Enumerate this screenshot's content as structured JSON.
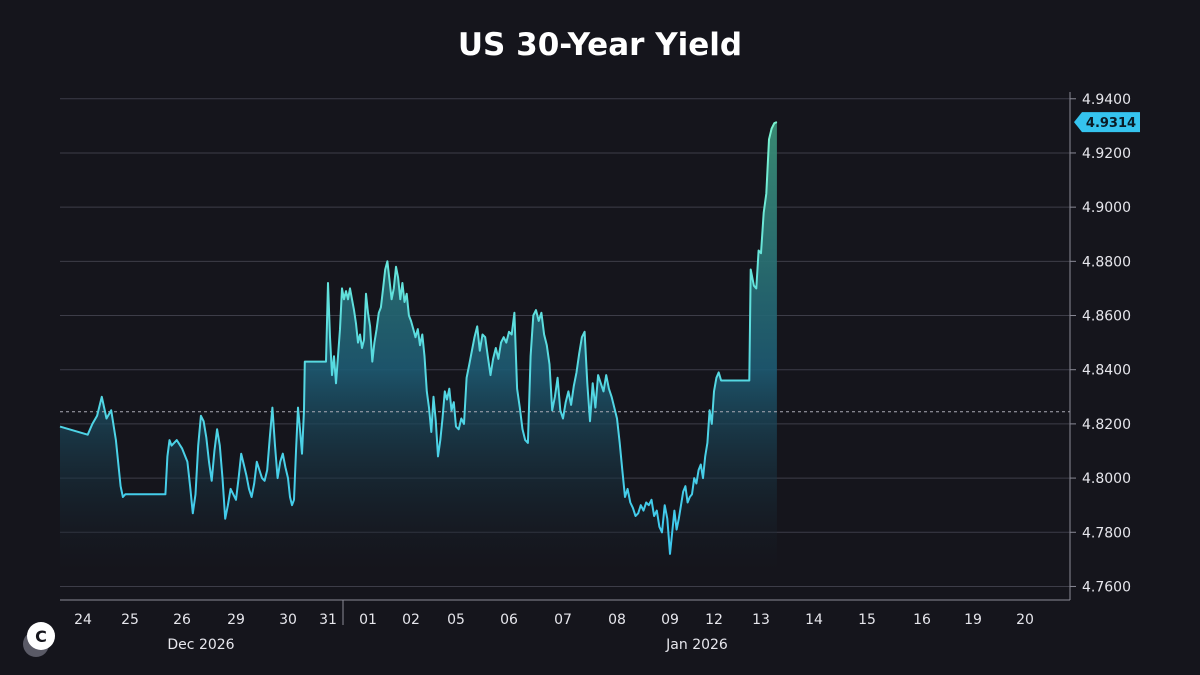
{
  "chart_data": {
    "type": "line",
    "title": "US 30-Year Yield",
    "ylim": [
      4.755,
      4.9425
    ],
    "y_ticks": [
      "4.9400",
      "4.9200",
      "4.9000",
      "4.8800",
      "4.8600",
      "4.8400",
      "4.8200",
      "4.8000",
      "4.7800",
      "4.7600"
    ],
    "x_ticks": [
      "24",
      "25",
      "26",
      "29",
      "30",
      "31",
      "01",
      "02",
      "05",
      "06",
      "07",
      "08",
      "09",
      "12",
      "13",
      "14",
      "15",
      "16",
      "19",
      "20"
    ],
    "month_labels": [
      "Dec 2026",
      "Jan 2026"
    ],
    "reference_level": 4.8245,
    "last_value": 4.9314,
    "last_value_label": "4.9314",
    "grid": true,
    "area_fill": true,
    "colors": {
      "background": "#15151c",
      "line_low": "#3cc7ee",
      "line_high": "#7af2d0",
      "badge": "#35c3ee",
      "grid": "#3d3d48"
    },
    "series": [
      {
        "points": [
          [
            0.0,
            4.819
          ],
          [
            0.1,
            4.816
          ],
          [
            0.2,
            4.82
          ],
          [
            0.3,
            4.823
          ],
          [
            0.4,
            4.83
          ],
          [
            0.5,
            4.822
          ],
          [
            0.6,
            4.825
          ],
          [
            0.7,
            4.814
          ],
          [
            0.8,
            4.797
          ],
          [
            0.85,
            4.793
          ],
          [
            0.9,
            4.794
          ],
          [
            1.0,
            4.794
          ],
          [
            1.3,
            4.794
          ],
          [
            1.5,
            4.794
          ],
          [
            1.68,
            4.794
          ],
          [
            1.72,
            4.808
          ],
          [
            1.76,
            4.814
          ],
          [
            1.8,
            4.812
          ],
          [
            1.9,
            4.814
          ],
          [
            2.0,
            4.811
          ],
          [
            2.1,
            4.806
          ],
          [
            2.15,
            4.797
          ],
          [
            2.2,
            4.787
          ],
          [
            2.25,
            4.794
          ],
          [
            2.3,
            4.812
          ],
          [
            2.35,
            4.823
          ],
          [
            2.4,
            4.821
          ],
          [
            2.45,
            4.815
          ],
          [
            2.5,
            4.806
          ],
          [
            2.55,
            4.799
          ],
          [
            2.6,
            4.81
          ],
          [
            2.65,
            4.818
          ],
          [
            2.7,
            4.812
          ],
          [
            2.75,
            4.8
          ],
          [
            2.8,
            4.785
          ],
          [
            2.85,
            4.79
          ],
          [
            2.9,
            4.796
          ],
          [
            2.95,
            4.794
          ],
          [
            3.0,
            4.792
          ],
          [
            3.05,
            4.8
          ],
          [
            3.1,
            4.809
          ],
          [
            3.15,
            4.805
          ],
          [
            3.2,
            4.801
          ],
          [
            3.25,
            4.796
          ],
          [
            3.3,
            4.793
          ],
          [
            3.35,
            4.798
          ],
          [
            3.4,
            4.806
          ],
          [
            3.45,
            4.803
          ],
          [
            3.5,
            4.8
          ],
          [
            3.55,
            4.799
          ],
          [
            3.6,
            4.803
          ],
          [
            3.65,
            4.815
          ],
          [
            3.7,
            4.826
          ],
          [
            3.75,
            4.812
          ],
          [
            3.8,
            4.8
          ],
          [
            3.85,
            4.806
          ],
          [
            3.9,
            4.809
          ],
          [
            3.95,
            4.804
          ],
          [
            4.0,
            4.8
          ],
          [
            4.05,
            4.793
          ],
          [
            4.1,
            4.79
          ],
          [
            4.15,
            4.792
          ],
          [
            4.2,
            4.81
          ],
          [
            4.25,
            4.826
          ],
          [
            4.3,
            4.818
          ],
          [
            4.35,
            4.809
          ],
          [
            4.4,
            4.825
          ],
          [
            4.42,
            4.843
          ],
          [
            4.5,
            4.843
          ],
          [
            4.7,
            4.843
          ],
          [
            4.95,
            4.843
          ],
          [
            5.0,
            4.872
          ],
          [
            5.05,
            4.852
          ],
          [
            5.1,
            4.838
          ],
          [
            5.15,
            4.845
          ],
          [
            5.2,
            4.835
          ],
          [
            5.25,
            4.845
          ],
          [
            5.3,
            4.855
          ],
          [
            5.35,
            4.87
          ],
          [
            5.4,
            4.866
          ],
          [
            5.45,
            4.869
          ],
          [
            5.5,
            4.866
          ],
          [
            5.55,
            4.87
          ],
          [
            5.6,
            4.866
          ],
          [
            5.65,
            4.862
          ],
          [
            5.7,
            4.857
          ],
          [
            5.75,
            4.85
          ],
          [
            5.8,
            4.853
          ],
          [
            5.85,
            4.848
          ],
          [
            5.9,
            4.851
          ],
          [
            5.95,
            4.868
          ],
          [
            6.0,
            4.861
          ],
          [
            6.05,
            4.856
          ],
          [
            6.1,
            4.843
          ],
          [
            6.15,
            4.85
          ],
          [
            6.2,
            4.855
          ],
          [
            6.25,
            4.861
          ],
          [
            6.3,
            4.863
          ],
          [
            6.35,
            4.87
          ],
          [
            6.4,
            4.877
          ],
          [
            6.45,
            4.88
          ],
          [
            6.5,
            4.873
          ],
          [
            6.55,
            4.866
          ],
          [
            6.6,
            4.87
          ],
          [
            6.65,
            4.878
          ],
          [
            6.7,
            4.874
          ],
          [
            6.75,
            4.866
          ],
          [
            6.8,
            4.872
          ],
          [
            6.85,
            4.865
          ],
          [
            6.9,
            4.868
          ],
          [
            6.95,
            4.86
          ],
          [
            7.0,
            4.858
          ],
          [
            7.05,
            4.855
          ],
          [
            7.1,
            4.852
          ],
          [
            7.15,
            4.855
          ],
          [
            7.2,
            4.849
          ],
          [
            7.25,
            4.853
          ],
          [
            7.3,
            4.845
          ],
          [
            7.35,
            4.832
          ],
          [
            7.4,
            4.826
          ],
          [
            7.45,
            4.817
          ],
          [
            7.5,
            4.83
          ],
          [
            7.55,
            4.821
          ],
          [
            7.6,
            4.808
          ],
          [
            7.65,
            4.814
          ],
          [
            7.7,
            4.822
          ],
          [
            7.75,
            4.832
          ],
          [
            7.8,
            4.829
          ],
          [
            7.85,
            4.833
          ],
          [
            7.9,
            4.825
          ],
          [
            7.95,
            4.828
          ],
          [
            8.0,
            4.819
          ],
          [
            8.05,
            4.818
          ],
          [
            8.1,
            4.822
          ],
          [
            8.15,
            4.82
          ],
          [
            8.2,
            4.837
          ],
          [
            8.25,
            4.842
          ],
          [
            8.3,
            4.847
          ],
          [
            8.35,
            4.852
          ],
          [
            8.4,
            4.856
          ],
          [
            8.45,
            4.847
          ],
          [
            8.5,
            4.853
          ],
          [
            8.55,
            4.852
          ],
          [
            8.6,
            4.845
          ],
          [
            8.65,
            4.838
          ],
          [
            8.7,
            4.844
          ],
          [
            8.75,
            4.848
          ],
          [
            8.8,
            4.844
          ],
          [
            8.85,
            4.85
          ],
          [
            8.9,
            4.852
          ],
          [
            8.95,
            4.85
          ],
          [
            9.0,
            4.854
          ],
          [
            9.05,
            4.853
          ],
          [
            9.1,
            4.861
          ],
          [
            9.15,
            4.833
          ],
          [
            9.2,
            4.826
          ],
          [
            9.25,
            4.818
          ],
          [
            9.3,
            4.814
          ],
          [
            9.35,
            4.813
          ],
          [
            9.4,
            4.845
          ],
          [
            9.45,
            4.86
          ],
          [
            9.5,
            4.862
          ],
          [
            9.55,
            4.858
          ],
          [
            9.6,
            4.861
          ],
          [
            9.65,
            4.853
          ],
          [
            9.7,
            4.849
          ],
          [
            9.75,
            4.842
          ],
          [
            9.8,
            4.825
          ],
          [
            9.85,
            4.83
          ],
          [
            9.9,
            4.837
          ],
          [
            9.95,
            4.825
          ],
          [
            10.0,
            4.822
          ],
          [
            10.05,
            4.828
          ],
          [
            10.1,
            4.832
          ],
          [
            10.15,
            4.827
          ],
          [
            10.2,
            4.834
          ],
          [
            10.25,
            4.839
          ],
          [
            10.3,
            4.846
          ],
          [
            10.35,
            4.852
          ],
          [
            10.4,
            4.854
          ],
          [
            10.45,
            4.835
          ],
          [
            10.5,
            4.821
          ],
          [
            10.55,
            4.835
          ],
          [
            10.6,
            4.826
          ],
          [
            10.65,
            4.838
          ],
          [
            10.7,
            4.835
          ],
          [
            10.75,
            4.832
          ],
          [
            10.8,
            4.838
          ],
          [
            10.85,
            4.833
          ],
          [
            10.9,
            4.83
          ],
          [
            10.95,
            4.826
          ],
          [
            11.0,
            4.822
          ],
          [
            11.05,
            4.813
          ],
          [
            11.1,
            4.803
          ],
          [
            11.15,
            4.793
          ],
          [
            11.2,
            4.796
          ],
          [
            11.25,
            4.791
          ],
          [
            11.3,
            4.789
          ],
          [
            11.35,
            4.786
          ],
          [
            11.4,
            4.787
          ],
          [
            11.45,
            4.79
          ],
          [
            11.5,
            4.788
          ],
          [
            11.55,
            4.791
          ],
          [
            11.6,
            4.79
          ],
          [
            11.65,
            4.792
          ],
          [
            11.7,
            4.786
          ],
          [
            11.75,
            4.788
          ],
          [
            11.8,
            4.782
          ],
          [
            11.85,
            4.78
          ],
          [
            11.9,
            4.79
          ],
          [
            11.95,
            4.785
          ],
          [
            12.0,
            4.772
          ],
          [
            12.05,
            4.78
          ],
          [
            12.1,
            4.788
          ],
          [
            12.15,
            4.781
          ],
          [
            12.2,
            4.785
          ],
          [
            12.25,
            4.79
          ],
          [
            12.3,
            4.795
          ],
          [
            12.35,
            4.797
          ],
          [
            12.4,
            4.791
          ],
          [
            12.45,
            4.793
          ],
          [
            12.5,
            4.794
          ],
          [
            12.55,
            4.8
          ],
          [
            12.6,
            4.798
          ],
          [
            12.65,
            4.803
          ],
          [
            12.7,
            4.805
          ],
          [
            12.75,
            4.8
          ],
          [
            12.8,
            4.808
          ],
          [
            12.85,
            4.813
          ],
          [
            12.9,
            4.825
          ],
          [
            12.95,
            4.82
          ],
          [
            13.0,
            4.832
          ],
          [
            13.05,
            4.837
          ],
          [
            13.1,
            4.839
          ],
          [
            13.15,
            4.836
          ],
          [
            13.3,
            4.836
          ],
          [
            13.6,
            4.836
          ],
          [
            13.75,
            4.836
          ],
          [
            13.78,
            4.877
          ],
          [
            13.85,
            4.871
          ],
          [
            13.9,
            4.87
          ],
          [
            13.95,
            4.884
          ],
          [
            14.0,
            4.883
          ],
          [
            14.05,
            4.898
          ],
          [
            14.1,
            4.905
          ],
          [
            14.15,
            4.925
          ],
          [
            14.2,
            4.929
          ],
          [
            14.25,
            4.931
          ],
          [
            14.3,
            4.9314
          ]
        ]
      }
    ]
  }
}
